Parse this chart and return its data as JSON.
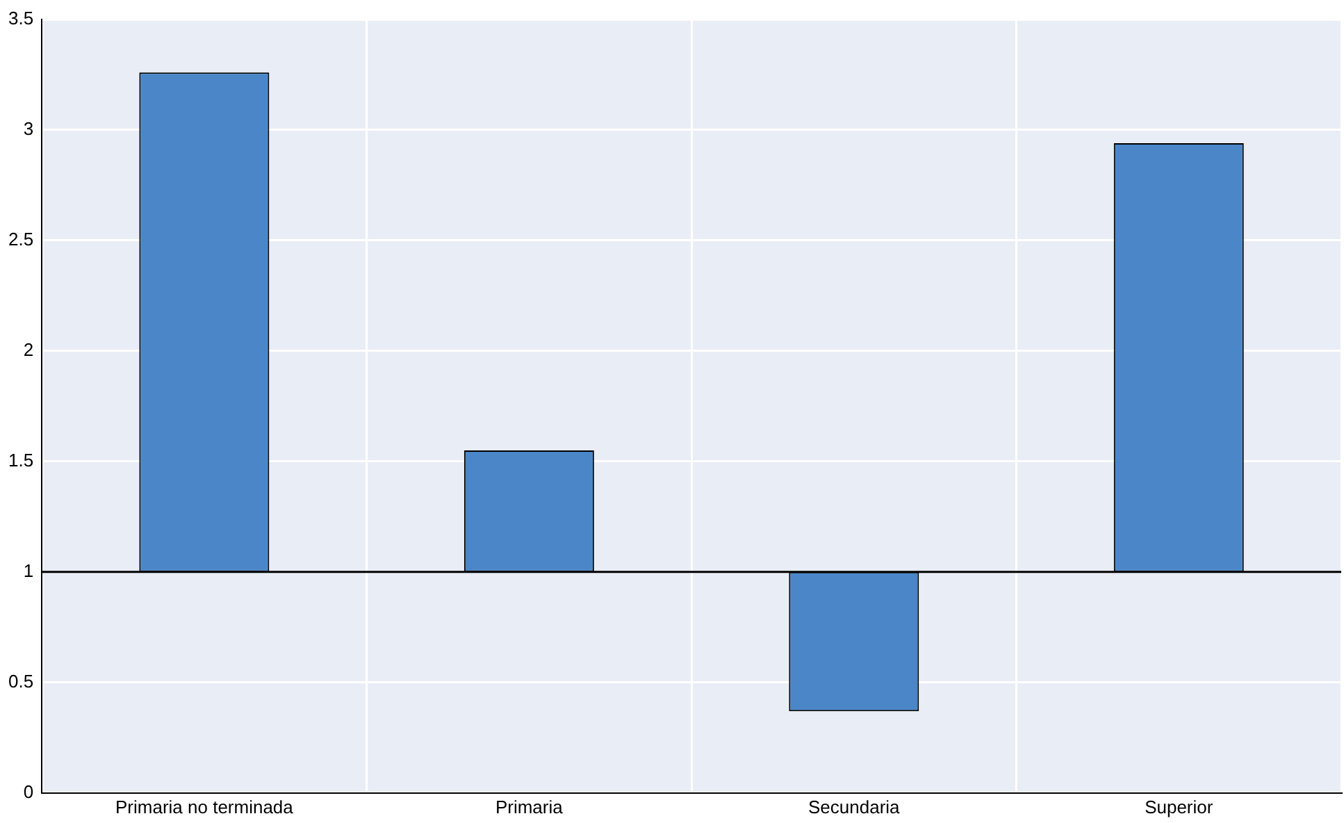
{
  "chart_data": {
    "type": "bar",
    "categories": [
      "Primaria no terminada",
      "Primaria",
      "Secundaria",
      "Superior"
    ],
    "values": [
      2.26,
      0.55,
      -0.63,
      1.94
    ],
    "base": [
      1,
      1,
      1,
      1
    ],
    "color": "#4a86c8",
    "ylim": [
      0,
      3.5
    ],
    "yticks": [
      0,
      0.5,
      1,
      1.5,
      2,
      2.5,
      3,
      3.5
    ],
    "ref_lines": [
      {
        "axis": "y",
        "value": 1,
        "color": "#000000"
      }
    ],
    "grid": true,
    "legend": false
  }
}
